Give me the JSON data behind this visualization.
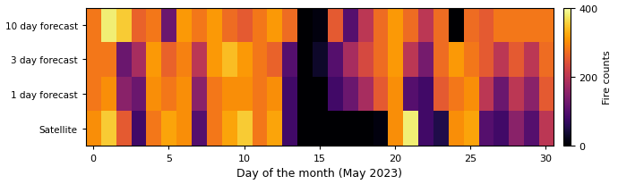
{
  "title": "",
  "xlabel": "Day of the month (May 2023)",
  "ylabel": "Fire counts",
  "row_labels": [
    "Satellite",
    "1 day forecast",
    "3 day forecast",
    "10 day forecast"
  ],
  "vmin": 0,
  "vmax": 400,
  "colormap": "inferno",
  "n_days": 31,
  "satellite": [
    300,
    350,
    250,
    80,
    280,
    320,
    300,
    100,
    280,
    320,
    350,
    280,
    320,
    80,
    0,
    0,
    0,
    0,
    0,
    10,
    300,
    380,
    80,
    50,
    300,
    320,
    100,
    80,
    150,
    100,
    200
  ],
  "1day_forecast": [
    280,
    300,
    150,
    120,
    300,
    280,
    300,
    150,
    280,
    300,
    300,
    280,
    300,
    80,
    0,
    0,
    80,
    120,
    180,
    250,
    300,
    100,
    80,
    250,
    280,
    300,
    200,
    120,
    200,
    150,
    250
  ],
  "3day_forecast": [
    280,
    280,
    120,
    180,
    310,
    260,
    290,
    200,
    310,
    340,
    310,
    280,
    260,
    100,
    0,
    30,
    100,
    180,
    230,
    270,
    310,
    200,
    130,
    270,
    310,
    280,
    250,
    200,
    250,
    200,
    270
  ],
  "10day_forecast": [
    280,
    380,
    350,
    260,
    280,
    120,
    310,
    280,
    310,
    270,
    250,
    280,
    310,
    270,
    0,
    10,
    250,
    100,
    200,
    270,
    310,
    270,
    200,
    270,
    0,
    270,
    250,
    280,
    280,
    280,
    280
  ],
  "figsize": [
    6.9,
    2.07
  ],
  "dpi": 100,
  "colorbar_ticks": [
    0,
    200,
    400
  ]
}
